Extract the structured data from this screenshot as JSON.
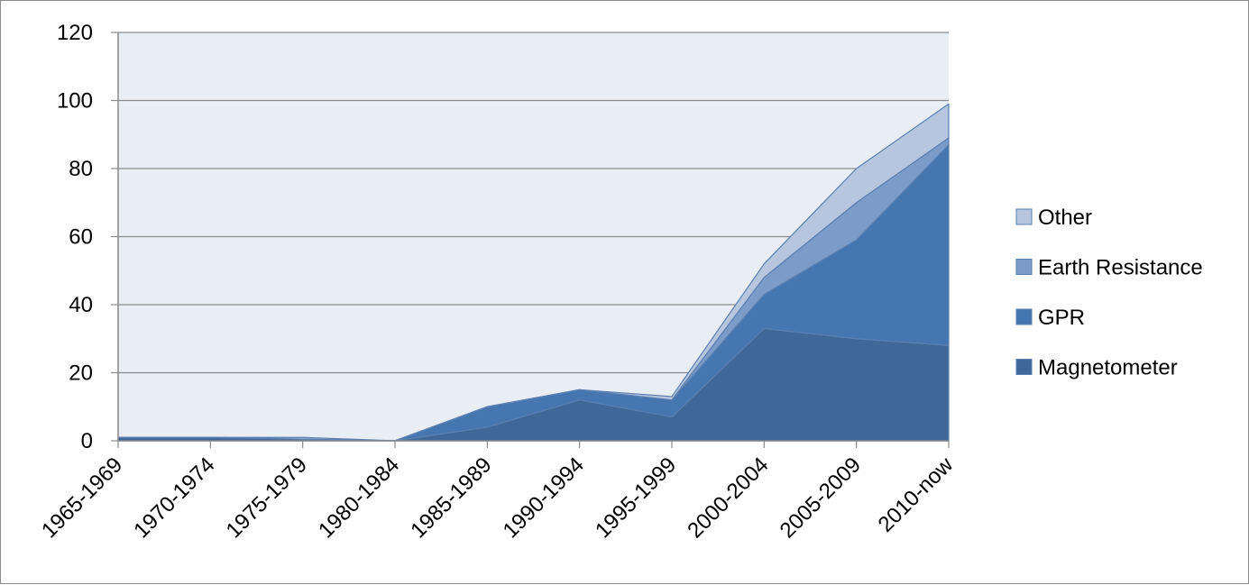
{
  "chart_data": {
    "type": "area",
    "stacked": true,
    "categories": [
      "1965-1969",
      "1970-1974",
      "1975-1979",
      "1980-1984",
      "1985-1989",
      "1990-1994",
      "1995-1999",
      "2000-2004",
      "2005-2009",
      "2010-now"
    ],
    "series": [
      {
        "name": "Magnetometer",
        "values": [
          1,
          1,
          0.5,
          0,
          4,
          12,
          7,
          33,
          30,
          28
        ],
        "color": "#3f6797"
      },
      {
        "name": "GPR",
        "values": [
          0,
          0,
          0,
          0,
          6,
          3,
          5,
          10,
          29,
          59
        ],
        "color": "#4676b0"
      },
      {
        "name": "Earth Resistance",
        "values": [
          0,
          0,
          0,
          0,
          0,
          0,
          0,
          5,
          11,
          2
        ],
        "color": "#7b9bc8"
      },
      {
        "name": "Other",
        "values": [
          0,
          0,
          0.5,
          0,
          0,
          0,
          1,
          4,
          10,
          10
        ],
        "color": "#b7c6df"
      }
    ],
    "yticks": [
      "0",
      "20",
      "40",
      "60",
      "80",
      "100",
      "120"
    ],
    "ylim": [
      0,
      120
    ],
    "grid": true,
    "legend_position": "right",
    "plot_background": "#e9eef5",
    "title": "",
    "xlabel": "",
    "ylabel": ""
  }
}
